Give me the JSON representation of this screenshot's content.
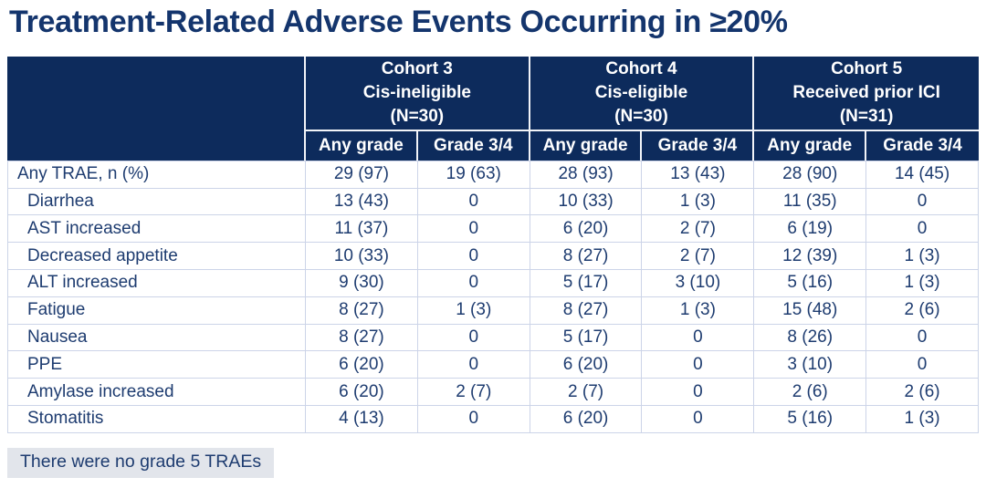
{
  "title": "Treatment-Related Adverse Events Occurring in ≥20%",
  "colors": {
    "header_bg": "#0d2b5c",
    "header_text": "#ffffff",
    "body_text": "#1e3c70",
    "grid_line": "#ccd4e8",
    "note_bg": "#e2e5eb",
    "title_text": "#14356d"
  },
  "table": {
    "cohorts": [
      {
        "line1": "Cohort 3",
        "line2": "Cis-ineligible",
        "line3": "(N=30)"
      },
      {
        "line1": "Cohort 4",
        "line2": "Cis-eligible",
        "line3": "(N=30)"
      },
      {
        "line1": "Cohort 5",
        "line2": "Received prior ICI",
        "line3": "(N=31)"
      }
    ],
    "grade_headers": [
      "Any grade",
      "Grade 3/4",
      "Any grade",
      "Grade 3/4",
      "Any grade",
      "Grade 3/4"
    ],
    "rows": [
      {
        "label": "Any TRAE, n (%)",
        "indent": false,
        "values": [
          "29 (97)",
          "19 (63)",
          "28 (93)",
          "13 (43)",
          "28 (90)",
          "14 (45)"
        ]
      },
      {
        "label": "Diarrhea",
        "indent": true,
        "values": [
          "13 (43)",
          "0",
          "10 (33)",
          "1 (3)",
          "11 (35)",
          "0"
        ]
      },
      {
        "label": "AST increased",
        "indent": true,
        "values": [
          "11 (37)",
          "0",
          "6 (20)",
          "2 (7)",
          "6 (19)",
          "0"
        ]
      },
      {
        "label": "Decreased appetite",
        "indent": true,
        "values": [
          "10 (33)",
          "0",
          "8 (27)",
          "2 (7)",
          "12 (39)",
          "1 (3)"
        ]
      },
      {
        "label": "ALT increased",
        "indent": true,
        "values": [
          "9 (30)",
          "0",
          "5 (17)",
          "3 (10)",
          "5 (16)",
          "1 (3)"
        ]
      },
      {
        "label": "Fatigue",
        "indent": true,
        "values": [
          "8 (27)",
          "1 (3)",
          "8 (27)",
          "1 (3)",
          "15 (48)",
          "2 (6)"
        ]
      },
      {
        "label": "Nausea",
        "indent": true,
        "values": [
          "8 (27)",
          "0",
          "5 (17)",
          "0",
          "8 (26)",
          "0"
        ]
      },
      {
        "label": "PPE",
        "indent": true,
        "values": [
          "6 (20)",
          "0",
          "6 (20)",
          "0",
          "3 (10)",
          "0"
        ]
      },
      {
        "label": "Amylase increased",
        "indent": true,
        "values": [
          "6 (20)",
          "2 (7)",
          "2 (7)",
          "0",
          "2 (6)",
          "2 (6)"
        ]
      },
      {
        "label": "Stomatitis",
        "indent": true,
        "values": [
          "4 (13)",
          "0",
          "6 (20)",
          "0",
          "5 (16)",
          "1 (3)"
        ]
      }
    ]
  },
  "footnote": "There were no grade 5 TRAEs"
}
